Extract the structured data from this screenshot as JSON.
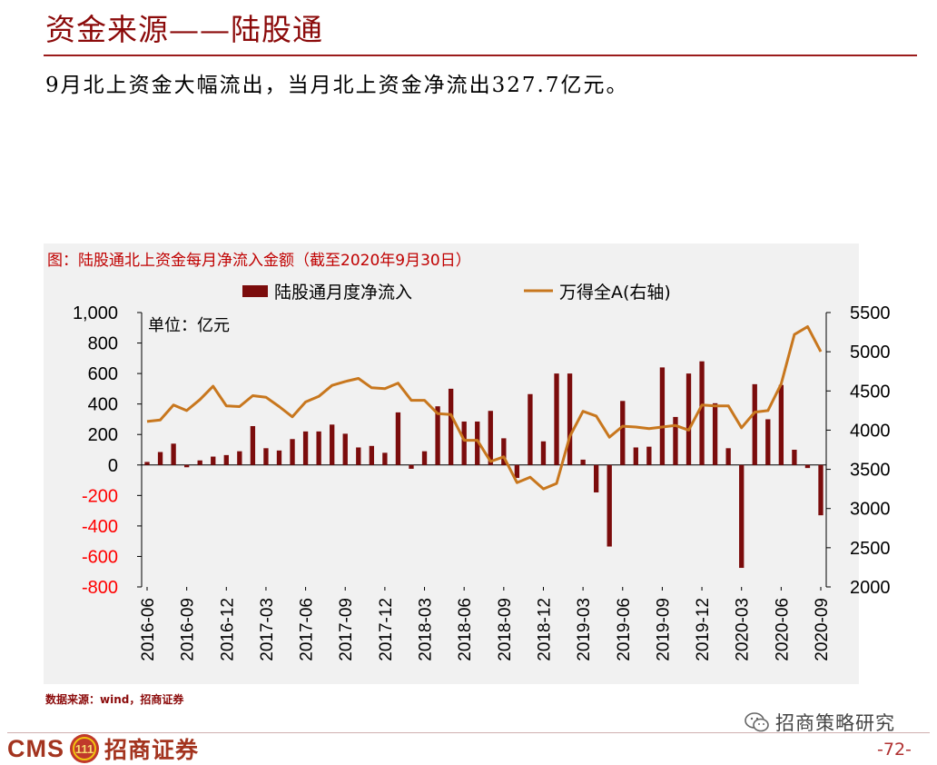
{
  "header": {
    "title": "资金来源——陆股通",
    "subtitle": "9月北上资金大幅流出，当月北上资金净流出327.7亿元。"
  },
  "chart_data": {
    "type": "bar+line",
    "title": "图：陆股通北上资金每月净流入金额（截至2020年9月30日）",
    "unit_label": "单位：亿元",
    "x": [
      "2016-06",
      "2016-07",
      "2016-08",
      "2016-09",
      "2016-10",
      "2016-11",
      "2016-12",
      "2017-01",
      "2017-02",
      "2017-03",
      "2017-04",
      "2017-05",
      "2017-06",
      "2017-07",
      "2017-08",
      "2017-09",
      "2017-10",
      "2017-11",
      "2017-12",
      "2018-01",
      "2018-02",
      "2018-03",
      "2018-04",
      "2018-05",
      "2018-06",
      "2018-07",
      "2018-08",
      "2018-09",
      "2018-10",
      "2018-11",
      "2018-12",
      "2019-01",
      "2019-02",
      "2019-03",
      "2019-04",
      "2019-05",
      "2019-06",
      "2019-07",
      "2019-08",
      "2019-09",
      "2019-10",
      "2019-11",
      "2019-12",
      "2020-01",
      "2020-02",
      "2020-03",
      "2020-04",
      "2020-05",
      "2020-06",
      "2020-07",
      "2020-08",
      "2020-09"
    ],
    "x_tick_labels": [
      "2016-06",
      "2016-09",
      "2016-12",
      "2017-03",
      "2017-06",
      "2017-09",
      "2017-12",
      "2018-03",
      "2018-06",
      "2018-09",
      "2018-12",
      "2019-03",
      "2019-06",
      "2019-09",
      "2019-12",
      "2020-03",
      "2020-06",
      "2020-09"
    ],
    "series": [
      {
        "name": "陆股通月度净流入",
        "type": "bar",
        "axis": "left",
        "color": "#7B0C0C",
        "values": [
          20,
          85,
          140,
          -15,
          30,
          55,
          65,
          90,
          255,
          110,
          95,
          170,
          220,
          220,
          265,
          205,
          115,
          125,
          80,
          345,
          -25,
          90,
          385,
          500,
          285,
          285,
          355,
          175,
          -85,
          465,
          155,
          600,
          600,
          35,
          -180,
          -535,
          420,
          115,
          120,
          640,
          315,
          600,
          680,
          405,
          110,
          -675,
          530,
          300,
          525,
          100,
          -20,
          -330
        ]
      },
      {
        "name": "万得全A(右轴)",
        "type": "line",
        "axis": "right",
        "color": "#C8771E",
        "values": [
          4110,
          4130,
          4320,
          4250,
          4390,
          4560,
          4310,
          4300,
          4440,
          4420,
          4300,
          4170,
          4360,
          4430,
          4570,
          4620,
          4660,
          4540,
          4530,
          4600,
          4380,
          4380,
          4210,
          4200,
          3870,
          3870,
          3600,
          3660,
          3330,
          3400,
          3250,
          3320,
          3920,
          4240,
          4180,
          3910,
          4050,
          4040,
          4020,
          4040,
          4060,
          4000,
          4320,
          4310,
          4310,
          4030,
          4230,
          4250,
          4590,
          5220,
          5320,
          5000
        ]
      }
    ],
    "y_left": {
      "ticks": [
        1000,
        800,
        600,
        400,
        200,
        0,
        -200,
        -400,
        -600,
        -800
      ],
      "tick_labels": [
        "1,000",
        "800",
        "600",
        "400",
        "200",
        "0",
        "-200",
        "-400",
        "-600",
        "-800"
      ],
      "range": [
        -800,
        1000
      ],
      "negative_color": "#FF0000"
    },
    "y_right": {
      "ticks": [
        5500,
        5000,
        4500,
        4000,
        3500,
        3000,
        2500,
        2000
      ],
      "range": [
        2000,
        5500
      ]
    },
    "legend": "top-center",
    "grid": false
  },
  "footer": {
    "source": "数据来源：wind，招商证券",
    "wechat": "招商策略研究",
    "logo_latin": "CMS",
    "logo_badge": "111",
    "logo_cn": "招商证券",
    "page_number": "-72-"
  }
}
